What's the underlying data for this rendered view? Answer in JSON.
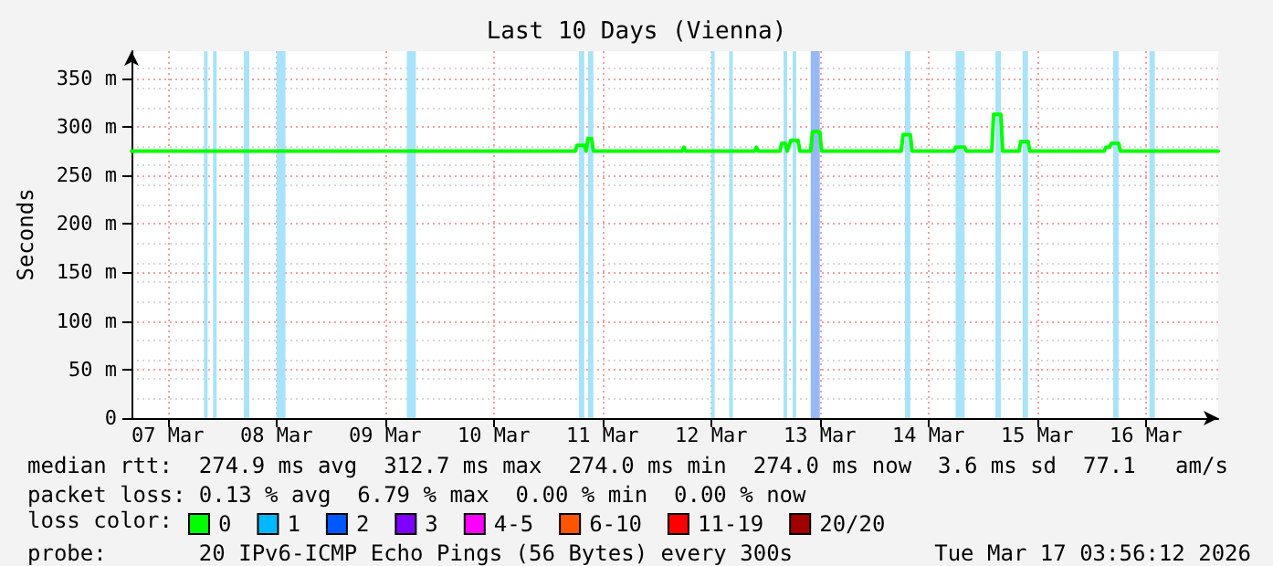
{
  "chart_data": {
    "type": "line",
    "title": "Last 10 Days (Vienna)",
    "ylabel": "Seconds",
    "legend_title": "loss color:",
    "legend": "bottom",
    "grid": true,
    "marker": "none",
    "line_style": "solid",
    "x": [
      "2026-03-07T04:00",
      "2026-03-11T06:00",
      "2026-03-11T06:24",
      "2026-03-11T08:00",
      "2026-03-11T08:24",
      "2026-03-11T08:48",
      "2026-03-11T09:36",
      "2026-03-11T10:00",
      "2026-03-12T05:36",
      "2026-03-12T06:00",
      "2026-03-12T06:24",
      "2026-03-12T21:36",
      "2026-03-12T22:00",
      "2026-03-12T22:24",
      "2026-03-13T03:12",
      "2026-03-13T03:36",
      "2026-03-13T04:24",
      "2026-03-13T04:48",
      "2026-03-13T05:36",
      "2026-03-13T07:12",
      "2026-03-13T07:36",
      "2026-03-13T10:00",
      "2026-03-13T10:24",
      "2026-03-13T12:00",
      "2026-03-13T12:24",
      "2026-03-14T06:00",
      "2026-03-14T06:24",
      "2026-03-14T08:00",
      "2026-03-14T08:24",
      "2026-03-14T17:36",
      "2026-03-14T18:00",
      "2026-03-14T20:00",
      "2026-03-14T20:24",
      "2026-03-15T02:00",
      "2026-03-15T02:24",
      "2026-03-15T04:00",
      "2026-03-15T04:24",
      "2026-03-15T08:00",
      "2026-03-15T08:24",
      "2026-03-15T10:00",
      "2026-03-15T10:24",
      "2026-03-16T02:48",
      "2026-03-16T03:12",
      "2026-03-16T04:00",
      "2026-03-16T04:24",
      "2026-03-16T06:00",
      "2026-03-16T06:24",
      "2026-03-17T04:00"
    ],
    "series": [
      {
        "name": "0",
        "color": "#00ff00",
        "values": [
          275,
          275,
          281,
          281,
          275,
          288,
          288,
          275,
          275,
          279,
          275,
          275,
          279,
          275,
          275,
          283,
          283,
          275,
          286,
          286,
          275,
          275,
          295,
          295,
          275,
          275,
          292,
          292,
          275,
          275,
          279,
          279,
          275,
          275,
          313,
          313,
          275,
          275,
          285,
          285,
          275,
          275,
          279,
          279,
          283,
          283,
          275,
          275
        ]
      },
      {
        "name": "1",
        "color": "#00b8ff",
        "values": [
          null,
          null,
          null,
          null,
          null,
          null,
          null,
          null,
          null,
          null,
          null,
          null,
          null,
          null,
          null,
          null,
          null,
          null,
          null,
          null,
          null,
          null,
          null,
          null,
          null,
          null,
          null,
          null,
          null,
          null,
          null,
          null,
          null,
          null,
          null,
          null,
          null,
          null,
          null,
          null,
          null,
          null,
          null,
          null,
          null,
          null,
          null,
          null
        ]
      },
      {
        "name": "2",
        "color": "#0059ff",
        "values": [
          null,
          null,
          null,
          null,
          null,
          null,
          null,
          null,
          null,
          null,
          null,
          null,
          null,
          null,
          null,
          null,
          null,
          null,
          null,
          null,
          null,
          null,
          null,
          null,
          null,
          null,
          null,
          null,
          null,
          null,
          null,
          null,
          null,
          null,
          null,
          null,
          null,
          null,
          null,
          null,
          null,
          null,
          null,
          null,
          null,
          null,
          null,
          null
        ]
      },
      {
        "name": "3",
        "color": "#7e00ff",
        "values": [
          null,
          null,
          null,
          null,
          null,
          null,
          null,
          null,
          null,
          null,
          null,
          null,
          null,
          null,
          null,
          null,
          null,
          null,
          null,
          null,
          null,
          null,
          null,
          null,
          null,
          null,
          null,
          null,
          null,
          null,
          null,
          null,
          null,
          null,
          null,
          null,
          null,
          null,
          null,
          null,
          null,
          null,
          null,
          null,
          null,
          null,
          null,
          null
        ]
      },
      {
        "name": "4-5",
        "color": "#ff00ff",
        "values": [
          null,
          null,
          null,
          null,
          null,
          null,
          null,
          null,
          null,
          null,
          null,
          null,
          null,
          null,
          null,
          null,
          null,
          null,
          null,
          null,
          null,
          null,
          null,
          null,
          null,
          null,
          null,
          null,
          null,
          null,
          null,
          null,
          null,
          null,
          null,
          null,
          null,
          null,
          null,
          null,
          null,
          null,
          null,
          null,
          null,
          null,
          null,
          null
        ]
      },
      {
        "name": "6-10",
        "color": "#ff5500",
        "values": [
          null,
          null,
          null,
          null,
          null,
          null,
          null,
          null,
          null,
          null,
          null,
          null,
          null,
          null,
          null,
          null,
          null,
          null,
          null,
          null,
          null,
          null,
          null,
          null,
          null,
          null,
          null,
          null,
          null,
          null,
          null,
          null,
          null,
          null,
          null,
          null,
          null,
          null,
          null,
          null,
          null,
          null,
          null,
          null,
          null,
          null,
          null,
          null
        ]
      },
      {
        "name": "11-19",
        "color": "#ff0000",
        "values": [
          null,
          null,
          null,
          null,
          null,
          null,
          null,
          null,
          null,
          null,
          null,
          null,
          null,
          null,
          null,
          null,
          null,
          null,
          null,
          null,
          null,
          null,
          null,
          null,
          null,
          null,
          null,
          null,
          null,
          null,
          null,
          null,
          null,
          null,
          null,
          null,
          null,
          null,
          null,
          null,
          null,
          null,
          null,
          null,
          null,
          null,
          null,
          null
        ]
      },
      {
        "name": "20/20",
        "color": "#a10000",
        "values": [
          null,
          null,
          null,
          null,
          null,
          null,
          null,
          null,
          null,
          null,
          null,
          null,
          null,
          null,
          null,
          null,
          null,
          null,
          null,
          null,
          null,
          null,
          null,
          null,
          null,
          null,
          null,
          null,
          null,
          null,
          null,
          null,
          null,
          null,
          null,
          null,
          null,
          null,
          null,
          null,
          null,
          null,
          null,
          null,
          null,
          null,
          null,
          null
        ]
      }
    ],
    "xlim": [
      "2026-03-07T04:00",
      "2026-03-17T04:00"
    ],
    "xticks": [
      {
        "value": "2026-03-07T12:00",
        "label": "07 Mar"
      },
      {
        "value": "2026-03-08T12:00",
        "label": "08 Mar"
      },
      {
        "value": "2026-03-09T12:00",
        "label": "09 Mar"
      },
      {
        "value": "2026-03-10T12:00",
        "label": "10 Mar"
      },
      {
        "value": "2026-03-11T12:00",
        "label": "11 Mar"
      },
      {
        "value": "2026-03-12T12:00",
        "label": "12 Mar"
      },
      {
        "value": "2026-03-13T12:00",
        "label": "13 Mar"
      },
      {
        "value": "2026-03-14T12:00",
        "label": "14 Mar"
      },
      {
        "value": "2026-03-15T12:00",
        "label": "15 Mar"
      },
      {
        "value": "2026-03-16T12:00",
        "label": "16 Mar"
      }
    ],
    "ylim": [
      0,
      378
    ],
    "yticks": [
      0,
      {
        "value": 50,
        "label": "50 m"
      },
      {
        "value": 100,
        "label": "100 m"
      },
      {
        "value": 150,
        "label": "150 m"
      },
      {
        "value": 200,
        "label": "200 m"
      },
      {
        "value": 250,
        "label": "250 m"
      },
      {
        "value": 300,
        "label": "300 m"
      },
      {
        "value": 350,
        "label": "350 m"
      }
    ],
    "bands": [
      {
        "axis": "x",
        "from": "2026-03-07T20:00",
        "to": "2026-03-07T20:48",
        "color": "#a8e3f8"
      },
      {
        "axis": "x",
        "from": "2026-03-07T22:00",
        "to": "2026-03-07T22:48",
        "color": "#a8e3f8"
      },
      {
        "axis": "x",
        "from": "2026-03-08T04:48",
        "to": "2026-03-08T06:00",
        "color": "#a8e3f8"
      },
      {
        "axis": "x",
        "from": "2026-03-08T12:00",
        "to": "2026-03-08T14:00",
        "color": "#a8e3f8"
      },
      {
        "axis": "x",
        "from": "2026-03-09T16:48",
        "to": "2026-03-09T18:48",
        "color": "#a8e3f8"
      },
      {
        "axis": "x",
        "from": "2026-03-11T06:48",
        "to": "2026-03-11T08:00",
        "color": "#a8e3f8"
      },
      {
        "axis": "x",
        "from": "2026-03-11T08:48",
        "to": "2026-03-11T10:00",
        "color": "#a8e3f8"
      },
      {
        "axis": "x",
        "from": "2026-03-12T12:00",
        "to": "2026-03-12T12:48",
        "color": "#a8e3f8"
      },
      {
        "axis": "x",
        "from": "2026-03-12T16:00",
        "to": "2026-03-12T16:48",
        "color": "#a8e3f8"
      },
      {
        "axis": "x",
        "from": "2026-03-13T04:00",
        "to": "2026-03-13T04:48",
        "color": "#a8e3f8"
      },
      {
        "axis": "x",
        "from": "2026-03-13T06:00",
        "to": "2026-03-13T06:48",
        "color": "#a8e3f8"
      },
      {
        "axis": "x",
        "from": "2026-03-13T10:00",
        "to": "2026-03-13T12:00",
        "color": "#96b8f5"
      },
      {
        "axis": "x",
        "from": "2026-03-14T06:48",
        "to": "2026-03-14T08:00",
        "color": "#a8e3f8"
      },
      {
        "axis": "x",
        "from": "2026-03-14T18:00",
        "to": "2026-03-14T20:00",
        "color": "#a8e3f8"
      },
      {
        "axis": "x",
        "from": "2026-03-15T02:48",
        "to": "2026-03-15T04:00",
        "color": "#a8e3f8"
      },
      {
        "axis": "x",
        "from": "2026-03-15T08:48",
        "to": "2026-03-15T10:00",
        "color": "#a8e3f8"
      },
      {
        "axis": "x",
        "from": "2026-03-16T04:48",
        "to": "2026-03-16T06:00",
        "color": "#a8e3f8"
      },
      {
        "axis": "x",
        "from": "2026-03-16T12:48",
        "to": "2026-03-16T14:00",
        "color": "#a8e3f8"
      }
    ],
    "annotations": [
      "median rtt:  274.9 ms avg  312.7 ms max  274.0 ms min  274.0 ms now  3.6 ms sd  77.1   am/s",
      "packet loss: 0.13 % avg  6.79 % max  0.00 % min  0.00 % now",
      "probe:       20 IPv6-ICMP Echo Pings (56 Bytes) every 300s",
      "Tue Mar 17 03:56:12 2026"
    ]
  }
}
